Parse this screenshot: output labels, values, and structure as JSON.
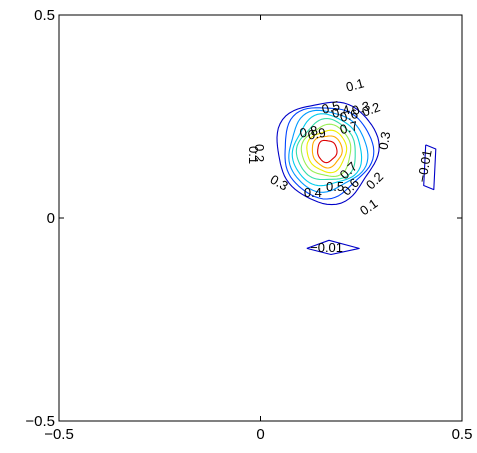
{
  "chart_data": {
    "type": "contour",
    "title": "",
    "xlabel": "",
    "ylabel": "",
    "xlim": [
      -0.5,
      0.5
    ],
    "ylim": [
      -0.5,
      0.5
    ],
    "x_ticks": [
      {
        "value": -0.5,
        "label": "−0.5"
      },
      {
        "value": 0,
        "label": "0"
      },
      {
        "value": 0.5,
        "label": "0.5"
      }
    ],
    "y_ticks": [
      {
        "value": -0.5,
        "label": "−0.5"
      },
      {
        "value": 0,
        "label": "0"
      },
      {
        "value": 0.5,
        "label": "0.5"
      }
    ],
    "grid": false,
    "peak": {
      "x": 0.165,
      "y": 0.165
    },
    "levels": [
      {
        "value": 0.1,
        "color": "#0000c8",
        "rx": 0.125,
        "ry": 0.125
      },
      {
        "value": 0.2,
        "color": "#0044ff",
        "rx": 0.11,
        "ry": 0.112
      },
      {
        "value": 0.3,
        "color": "#0099ff",
        "rx": 0.097,
        "ry": 0.099
      },
      {
        "value": 0.4,
        "color": "#00ccee",
        "rx": 0.085,
        "ry": 0.087
      },
      {
        "value": 0.5,
        "color": "#33ddaa",
        "rx": 0.073,
        "ry": 0.075
      },
      {
        "value": 0.6,
        "color": "#99ee55",
        "rx": 0.061,
        "ry": 0.063
      },
      {
        "value": 0.7,
        "color": "#eeee00",
        "rx": 0.049,
        "ry": 0.051
      },
      {
        "value": 0.8,
        "color": "#ffaa00",
        "rx": 0.037,
        "ry": 0.039
      },
      {
        "value": 0.9,
        "color": "#dd0000",
        "rx": 0.024,
        "ry": 0.027
      }
    ],
    "negative_contours": [
      {
        "value": -0.01,
        "color": "#0000c8",
        "label": "−0.01",
        "x": [
          0.41,
          0.435,
          0.43,
          0.405,
          0.41
        ],
        "y": [
          0.18,
          0.17,
          0.07,
          0.08,
          0.18
        ]
      },
      {
        "value": -0.01,
        "color": "#0000c8",
        "label": "−0.01",
        "x": [
          0.115,
          0.17,
          0.245,
          0.175,
          0.115
        ],
        "y": [
          -0.075,
          -0.055,
          -0.075,
          -0.09,
          -0.075
        ]
      }
    ],
    "annotations": [
      {
        "text": "0.1",
        "x": 0.235,
        "y": 0.325,
        "rot": -15
      },
      {
        "text": "0.2",
        "x": 0.275,
        "y": 0.265,
        "rot": -20
      },
      {
        "text": "0.3",
        "x": 0.25,
        "y": 0.268,
        "rot": -20
      },
      {
        "text": "0.4",
        "x": 0.2,
        "y": 0.26,
        "rot": -15
      },
      {
        "text": "0.5",
        "x": 0.175,
        "y": 0.27,
        "rot": -15
      },
      {
        "text": "0.6",
        "x": 0.22,
        "y": 0.25,
        "rot": -15
      },
      {
        "text": "0.7",
        "x": 0.22,
        "y": 0.22,
        "rot": -15
      },
      {
        "text": "0.8",
        "x": 0.12,
        "y": 0.21,
        "rot": -10
      },
      {
        "text": "0.9",
        "x": 0.14,
        "y": 0.205,
        "rot": -10
      },
      {
        "text": "0.3",
        "x": 0.31,
        "y": 0.19,
        "rot": -80
      },
      {
        "text": "0.2",
        "x": -0.005,
        "y": 0.16,
        "rot": 90
      },
      {
        "text": "0.1",
        "x": -0.02,
        "y": 0.155,
        "rot": 90
      },
      {
        "text": "0.7",
        "x": 0.22,
        "y": 0.115,
        "rot": -45
      },
      {
        "text": "0.6",
        "x": 0.225,
        "y": 0.075,
        "rot": -45
      },
      {
        "text": "0.3",
        "x": 0.045,
        "y": 0.085,
        "rot": 30
      },
      {
        "text": "0.4",
        "x": 0.13,
        "y": 0.06,
        "rot": 0
      },
      {
        "text": "0.5",
        "x": 0.185,
        "y": 0.075,
        "rot": 0
      },
      {
        "text": "0.2",
        "x": 0.285,
        "y": 0.09,
        "rot": -45
      },
      {
        "text": "0.1",
        "x": 0.27,
        "y": 0.025,
        "rot": -35
      }
    ]
  }
}
